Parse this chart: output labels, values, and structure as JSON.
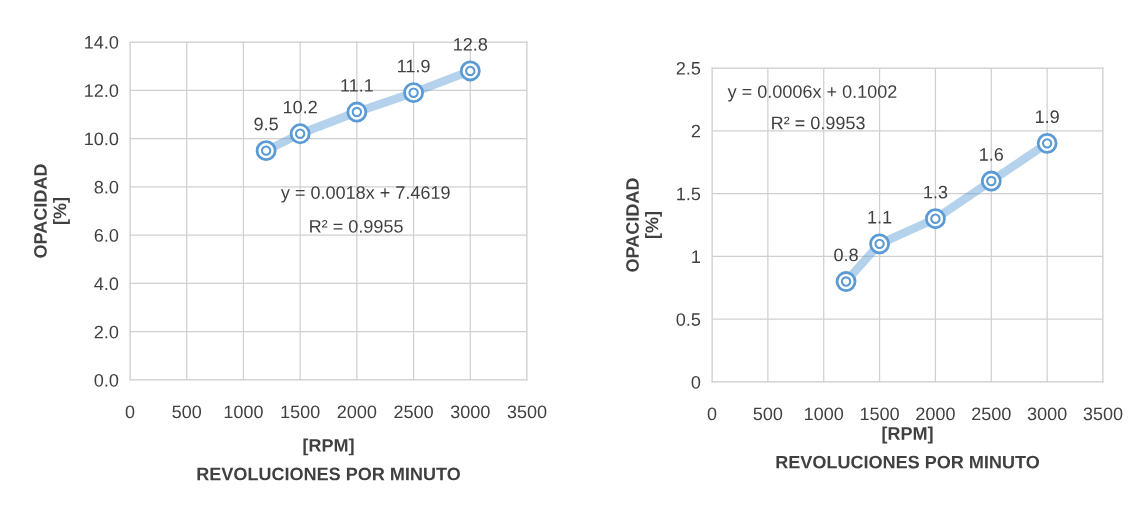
{
  "chart_data": [
    {
      "type": "line",
      "xlabel": "[RPM]\nREVOLUCIONES POR MINUTO",
      "ylabel": "OPACIDAD\n[%]",
      "series": [
        {
          "color": "#5b9bd5",
          "x": [
            1200,
            1500,
            2000,
            2500,
            3000
          ],
          "values": [
            9.5,
            10.2,
            11.1,
            11.9,
            12.8
          ]
        }
      ],
      "data_labels": true,
      "marker": "circle",
      "grid": true,
      "xlim": [
        0,
        3500
      ],
      "xticks": [
        0,
        500,
        1000,
        1500,
        2000,
        2500,
        3000,
        3500
      ],
      "ylim": [
        0,
        14
      ],
      "yticks": [
        {
          "value": 0,
          "label": "0.0"
        },
        {
          "value": 2,
          "label": "2.0"
        },
        {
          "value": 4,
          "label": "4.0"
        },
        {
          "value": 6,
          "label": "6.0"
        },
        {
          "value": 8,
          "label": "8.0"
        },
        {
          "value": 10,
          "label": "10.0"
        },
        {
          "value": 12,
          "label": "12.0"
        },
        {
          "value": 14,
          "label": "14.0"
        }
      ],
      "annotations": [
        "y = 0.0018x + 7.4619",
        "R² = 0.9955"
      ]
    },
    {
      "type": "line",
      "xlabel": "[RPM]\nREVOLUCIONES POR MINUTO",
      "ylabel": "OPACIDAD\n[%]",
      "series": [
        {
          "color": "#5b9bd5",
          "x": [
            1200,
            1500,
            2000,
            2500,
            3000
          ],
          "values": [
            0.8,
            1.1,
            1.3,
            1.6,
            1.9
          ]
        }
      ],
      "data_labels": true,
      "marker": "circle",
      "grid": true,
      "xlim": [
        0,
        3500
      ],
      "xticks": [
        0,
        500,
        1000,
        1500,
        2000,
        2500,
        3000,
        3500
      ],
      "ylim": [
        0,
        2.5
      ],
      "yticks": [
        0,
        0.5,
        1,
        1.5,
        2,
        2.5
      ],
      "annotations": [
        "y = 0.0006x + 0.1002",
        "R² = 0.9953"
      ]
    }
  ]
}
